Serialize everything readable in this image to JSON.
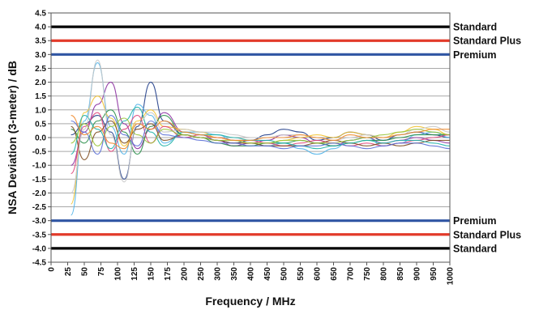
{
  "chart_data": {
    "type": "line",
    "xlabel": "Frequency / MHz",
    "ylabel": "NSA Deviation (3-meter) / dB",
    "xlim": [
      0,
      1000
    ],
    "ylim": [
      -4.5,
      4.5
    ],
    "x_ticks": [
      "0",
      "25",
      "50",
      "75",
      "100",
      "125",
      "150",
      "175",
      "200",
      "250",
      "300",
      "350",
      "400",
      "450",
      "500",
      "550",
      "600",
      "650",
      "700",
      "750",
      "800",
      "850",
      "900",
      "950",
      "1000"
    ],
    "y_ticks": [
      "4.5",
      "4.0",
      "3.5",
      "3.0",
      "2.5",
      "2.0",
      "1.5",
      "1.0",
      "0.5",
      "0.0",
      "-0.5",
      "-1.0",
      "-1.5",
      "-2.0",
      "-2.5",
      "-3.0",
      "-3.5",
      "-4.0",
      "-4.5"
    ],
    "grid": true,
    "reference_lines": [
      {
        "name": "Standard",
        "y": 4.0,
        "color": "#000000"
      },
      {
        "name": "Standard Plus",
        "y": 3.5,
        "color": "#e23a2a"
      },
      {
        "name": "Premium",
        "y": 3.0,
        "color": "#2f55a3"
      },
      {
        "name": "Premium",
        "y": -3.0,
        "color": "#2f55a3"
      },
      {
        "name": "Standard Plus",
        "y": -3.5,
        "color": "#e23a2a"
      },
      {
        "name": "Standard",
        "y": -4.0,
        "color": "#000000"
      }
    ],
    "series": [
      {
        "color": "#1f3c88",
        "x": [
          30,
          50,
          70,
          90,
          110,
          130,
          150,
          170,
          200,
          250,
          300,
          350,
          400,
          450,
          500,
          550,
          600,
          650,
          700,
          750,
          800,
          850,
          900,
          950,
          1000
        ],
        "y": [
          0.1,
          0.5,
          0.8,
          0.2,
          -1.5,
          0.4,
          2.0,
          0.6,
          0.1,
          0.0,
          -0.1,
          -0.2,
          -0.1,
          0.1,
          0.3,
          0.2,
          -0.1,
          0.0,
          0.2,
          0.1,
          -0.1,
          0.1,
          0.2,
          0.1,
          0.0
        ]
      },
      {
        "color": "#8b2fa0",
        "x": [
          30,
          50,
          70,
          90,
          110,
          130,
          150,
          170,
          200,
          250,
          300,
          350,
          400,
          450,
          500,
          550,
          600,
          650,
          700,
          750,
          800,
          850,
          900,
          950,
          1000
        ],
        "y": [
          -1.0,
          0.2,
          1.2,
          2.0,
          0.5,
          -0.4,
          0.3,
          0.9,
          0.2,
          0.1,
          -0.1,
          -0.3,
          -0.2,
          -0.1,
          0.1,
          0.0,
          -0.2,
          -0.3,
          -0.1,
          0.0,
          -0.2,
          -0.1,
          0.0,
          -0.1,
          -0.2
        ]
      },
      {
        "color": "#4fb3e8",
        "x": [
          30,
          50,
          70,
          90,
          110,
          130,
          150,
          170,
          200,
          250,
          300,
          350,
          400,
          450,
          500,
          550,
          600,
          650,
          700,
          750,
          800,
          850,
          900,
          950,
          1000
        ],
        "y": [
          -2.8,
          0.6,
          2.7,
          0.4,
          -0.6,
          1.2,
          0.8,
          -0.2,
          0.2,
          0.2,
          0.1,
          -0.1,
          -0.2,
          -0.3,
          -0.2,
          -0.4,
          -0.6,
          -0.4,
          -0.1,
          0.0,
          -0.3,
          -0.2,
          0.1,
          0.2,
          0.0
        ]
      },
      {
        "color": "#f2c230",
        "x": [
          30,
          50,
          70,
          90,
          110,
          130,
          150,
          170,
          200,
          250,
          300,
          350,
          400,
          450,
          500,
          550,
          600,
          650,
          700,
          750,
          800,
          850,
          900,
          950,
          1000
        ],
        "y": [
          -2.4,
          0.9,
          1.5,
          0.7,
          -0.3,
          0.6,
          1.0,
          0.4,
          0.3,
          0.2,
          0.0,
          -0.1,
          -0.2,
          -0.2,
          -0.1,
          0.0,
          0.1,
          0.0,
          0.2,
          0.1,
          0.0,
          0.2,
          0.4,
          0.3,
          0.1
        ]
      },
      {
        "color": "#2a8f4a",
        "x": [
          30,
          50,
          70,
          90,
          110,
          130,
          150,
          170,
          200,
          250,
          300,
          350,
          400,
          450,
          500,
          550,
          600,
          650,
          700,
          750,
          800,
          850,
          900,
          950,
          1000
        ],
        "y": [
          0.3,
          -0.2,
          0.6,
          1.0,
          0.2,
          -0.6,
          0.4,
          0.8,
          0.1,
          0.0,
          -0.2,
          -0.3,
          -0.3,
          -0.2,
          -0.2,
          -0.1,
          -0.2,
          -0.3,
          -0.2,
          -0.1,
          -0.1,
          0.0,
          0.1,
          0.1,
          0.1
        ]
      },
      {
        "color": "#e0457b",
        "x": [
          30,
          50,
          70,
          90,
          110,
          130,
          150,
          170,
          200,
          250,
          300,
          350,
          400,
          450,
          500,
          550,
          600,
          650,
          700,
          750,
          800,
          850,
          900,
          950,
          1000
        ],
        "y": [
          -1.3,
          0.4,
          0.9,
          -0.5,
          0.3,
          0.8,
          -0.2,
          0.4,
          0.0,
          0.1,
          0.0,
          -0.1,
          -0.1,
          -0.2,
          -0.3,
          -0.2,
          -0.1,
          -0.2,
          -0.3,
          -0.2,
          -0.3,
          -0.2,
          -0.1,
          0.0,
          0.1
        ]
      },
      {
        "color": "#7c4a1e",
        "x": [
          30,
          50,
          70,
          90,
          110,
          130,
          150,
          170,
          200,
          250,
          300,
          350,
          400,
          450,
          500,
          550,
          600,
          650,
          700,
          750,
          800,
          850,
          900,
          950,
          1000
        ],
        "y": [
          0.4,
          -0.8,
          0.2,
          0.6,
          -0.2,
          0.3,
          0.5,
          -0.1,
          0.1,
          0.0,
          -0.1,
          -0.2,
          -0.2,
          -0.3,
          -0.3,
          -0.3,
          -0.2,
          -0.1,
          -0.2,
          -0.3,
          -0.2,
          -0.3,
          -0.2,
          -0.1,
          -0.1
        ]
      },
      {
        "color": "#20b2aa",
        "x": [
          30,
          50,
          70,
          90,
          110,
          130,
          150,
          170,
          200,
          250,
          300,
          350,
          400,
          450,
          500,
          550,
          600,
          650,
          700,
          750,
          800,
          850,
          900,
          950,
          1000
        ],
        "y": [
          -0.6,
          0.8,
          0.3,
          -0.4,
          0.6,
          1.1,
          0.2,
          -0.3,
          0.2,
          0.1,
          0.1,
          0.0,
          -0.1,
          -0.1,
          -0.2,
          -0.3,
          -0.4,
          -0.3,
          -0.2,
          -0.1,
          -0.2,
          -0.1,
          -0.1,
          -0.2,
          -0.3
        ]
      },
      {
        "color": "#c8c8c8",
        "x": [
          30,
          50,
          70,
          90,
          110,
          130,
          150,
          170,
          200,
          250,
          300,
          350,
          400,
          450,
          500,
          550,
          600,
          650,
          700,
          750,
          800,
          850,
          900,
          950,
          1000
        ],
        "y": [
          -2.0,
          0.3,
          2.8,
          0.1,
          -1.6,
          0.5,
          0.9,
          0.2,
          0.3,
          0.2,
          0.2,
          0.1,
          0.0,
          0.0,
          0.1,
          0.1,
          0.0,
          -0.1,
          0.0,
          0.1,
          0.0,
          0.1,
          0.3,
          0.4,
          0.2
        ]
      },
      {
        "color": "#9ac43a",
        "x": [
          30,
          50,
          70,
          90,
          110,
          130,
          150,
          170,
          200,
          250,
          300,
          350,
          400,
          450,
          500,
          550,
          600,
          650,
          700,
          750,
          800,
          850,
          900,
          950,
          1000
        ],
        "y": [
          -0.2,
          0.5,
          -0.3,
          0.4,
          0.7,
          0.1,
          -0.2,
          0.3,
          0.1,
          0.0,
          -0.1,
          -0.1,
          -0.2,
          -0.2,
          -0.1,
          -0.1,
          -0.2,
          -0.2,
          -0.1,
          0.0,
          0.1,
          0.2,
          0.3,
          0.2,
          0.1
        ]
      },
      {
        "color": "#5b6fd6",
        "x": [
          30,
          50,
          70,
          90,
          110,
          130,
          150,
          170,
          200,
          250,
          300,
          350,
          400,
          450,
          500,
          550,
          600,
          650,
          700,
          750,
          800,
          850,
          900,
          950,
          1000
        ],
        "y": [
          0.6,
          0.2,
          -0.6,
          0.8,
          0.1,
          -0.3,
          0.6,
          0.1,
          0.0,
          -0.1,
          -0.2,
          -0.2,
          -0.3,
          -0.3,
          -0.4,
          -0.3,
          -0.3,
          -0.2,
          -0.3,
          -0.4,
          -0.3,
          -0.2,
          -0.2,
          -0.3,
          -0.4
        ]
      },
      {
        "color": "#f08a2c",
        "x": [
          30,
          50,
          70,
          90,
          110,
          130,
          150,
          170,
          200,
          250,
          300,
          350,
          400,
          450,
          500,
          550,
          600,
          650,
          700,
          750,
          800,
          850,
          900,
          950,
          1000
        ],
        "y": [
          0.8,
          0.1,
          0.4,
          -0.2,
          -0.4,
          0.5,
          0.3,
          0.6,
          0.2,
          0.1,
          0.0,
          -0.1,
          -0.1,
          0.0,
          0.0,
          0.1,
          0.0,
          -0.1,
          0.1,
          0.0,
          0.0,
          0.1,
          0.2,
          0.3,
          0.3
        ]
      }
    ]
  }
}
